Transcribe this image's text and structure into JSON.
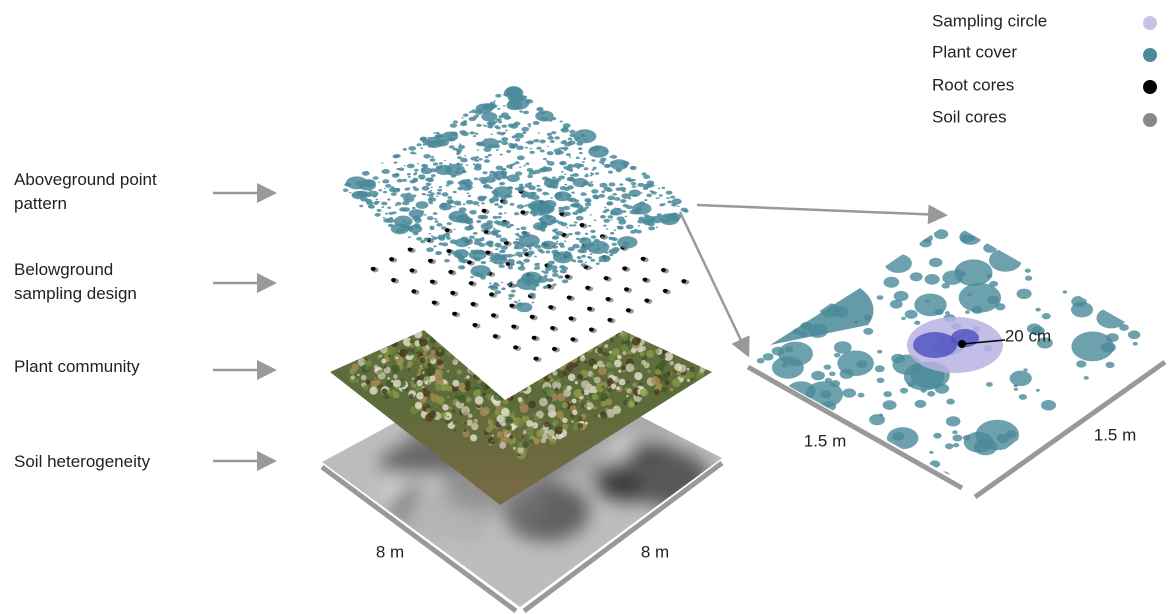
{
  "legend": [
    {
      "label": "Sampling circle"
    },
    {
      "label": "Plant cover"
    },
    {
      "label": "Root cores"
    },
    {
      "label": "Soil cores"
    }
  ],
  "layers": [
    {
      "label": "Aboveground point pattern"
    },
    {
      "label": "Belowground sampling design"
    },
    {
      "label": "Plant community"
    },
    {
      "label": "Soil heterogeneity"
    }
  ],
  "plot": {
    "side_left": "8 m",
    "side_right": "8 m"
  },
  "subplot": {
    "side_left": "1.5 m",
    "side_right": "1.5 m",
    "radius": "20 cm"
  }
}
